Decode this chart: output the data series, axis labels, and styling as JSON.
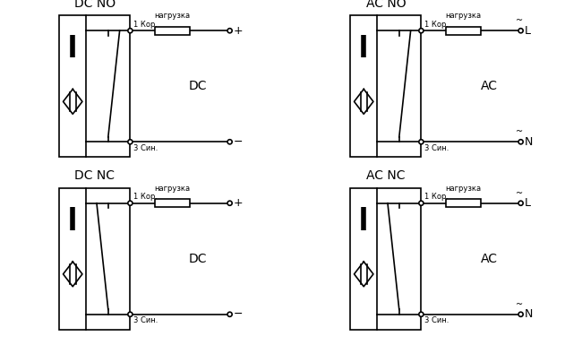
{
  "panels": [
    {
      "title": "DC NO",
      "col": 0,
      "row": 0,
      "type": "NO",
      "mode": "DC",
      "label_r1": "+",
      "label_r2": "−",
      "tilde1": false,
      "tilde2": false
    },
    {
      "title": "AC NO",
      "col": 1,
      "row": 0,
      "type": "NO",
      "mode": "AC",
      "label_r1": "L",
      "label_r2": "N",
      "tilde1": true,
      "tilde2": true
    },
    {
      "title": "DC NC",
      "col": 0,
      "row": 1,
      "type": "NC",
      "mode": "DC",
      "label_r1": "+",
      "label_r2": "−",
      "tilde1": false,
      "tilde2": false
    },
    {
      "title": "AC NC",
      "col": 1,
      "row": 1,
      "type": "NC",
      "mode": "AC",
      "label_r1": "L",
      "label_r2": "N",
      "tilde1": true,
      "tilde2": true
    }
  ],
  "bg_color": "#ffffff",
  "line_color": "#000000",
  "text_color": "#000000"
}
